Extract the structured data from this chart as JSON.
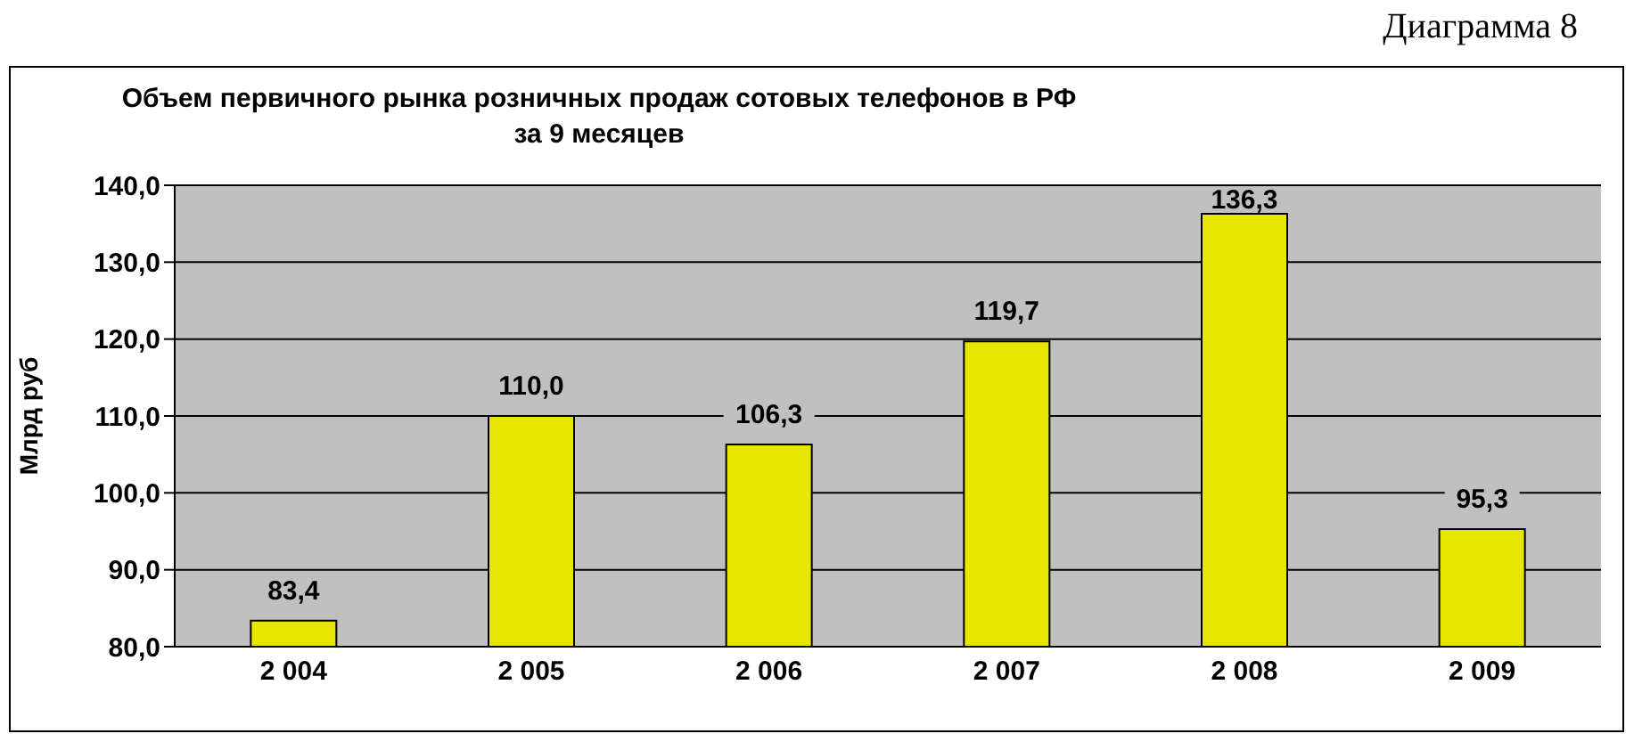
{
  "chart_data": {
    "type": "bar",
    "title": "Объем первичного рынка розничных продаж сотовых телефонов в РФ\nза 9 месяцев",
    "ylabel": "Млрд руб",
    "annotations": [
      "Диаграмма 8"
    ],
    "categories": [
      "2 004",
      "2 005",
      "2 006",
      "2 007",
      "2 008",
      "2 009"
    ],
    "values": [
      83.4,
      110.0,
      106.3,
      119.7,
      136.3,
      95.3
    ],
    "value_labels": [
      "83,4",
      "110,0",
      "106,3",
      "119,7",
      "136,3",
      "95,3"
    ],
    "color": "#e6e600",
    "ylim": [
      80,
      140
    ],
    "yticks": [
      {
        "value": 80,
        "label": "80,0"
      },
      {
        "value": 90,
        "label": "90,0"
      },
      {
        "value": 100,
        "label": "100,0"
      },
      {
        "value": 110,
        "label": "110,0"
      },
      {
        "value": 120,
        "label": "120,0"
      },
      {
        "value": 130,
        "label": "130,0"
      },
      {
        "value": 140,
        "label": "140,0"
      }
    ],
    "grid": "y",
    "legend": false
  }
}
